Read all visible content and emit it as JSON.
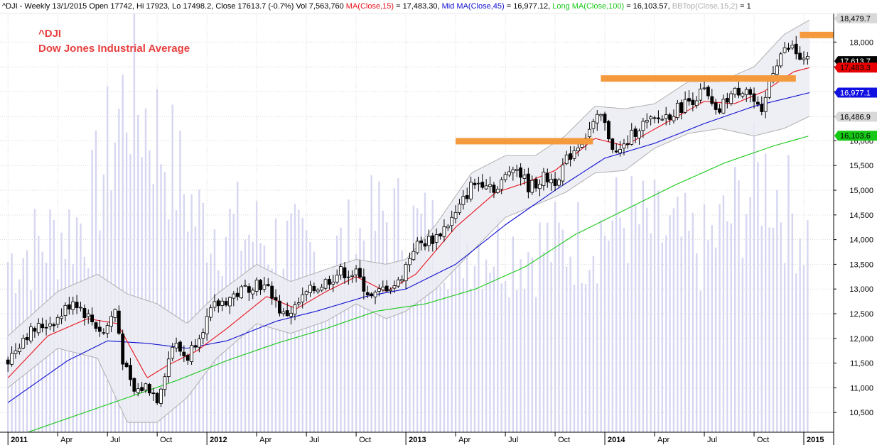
{
  "header": {
    "segments": [
      {
        "text": "^DJI - Weekly 13/1/2015 Open 17742, Hi 17923, Lo 17498.2, Close 17613.7 (-0.7%) Vol 7,563,760 ",
        "color": "#000000"
      },
      {
        "text": "MA(Close,15)",
        "color": "#e8141c"
      },
      {
        "text": " = 17,483.30, ",
        "color": "#000000"
      },
      {
        "text": "Mid MA(Close,45)",
        "color": "#1010d0"
      },
      {
        "text": " = 16,977.12, ",
        "color": "#000000"
      },
      {
        "text": "Long MA(Close,100)",
        "color": "#18c818"
      },
      {
        "text": " = 16,103.57, ",
        "color": "#000000"
      },
      {
        "text": "BBTop(Close,15,2)",
        "color": "#b0b0b0"
      },
      {
        "text": " = 1",
        "color": "#000000"
      }
    ]
  },
  "chart_data": {
    "type": "candlestick",
    "symbol": "^DJI",
    "title": "^DJI",
    "subtitle": "Dow Jones Industrial Average",
    "ylim": [
      10100,
      18550
    ],
    "yticks": [
      10500,
      11000,
      11500,
      12000,
      12500,
      13000,
      13500,
      14000,
      14500,
      15000,
      15500,
      16000,
      16486.9,
      17000,
      17500,
      18000
    ],
    "ytick_labels": [
      "10,500",
      "11,000",
      "11,500",
      "12,000",
      "12,500",
      "13,000",
      "13,500",
      "14,000",
      "14,500",
      "15,000",
      "15,500",
      "16,000",
      "16,486.9",
      "",
      "",
      "18,000"
    ],
    "xlim": [
      2010.96,
      2015.15
    ],
    "x_labels": [
      {
        "label": "2011",
        "t": 2011.0,
        "bold": true
      },
      {
        "label": "Apr",
        "t": 2011.25,
        "bold": false
      },
      {
        "label": "Jul",
        "t": 2011.5,
        "bold": false
      },
      {
        "label": "Oct",
        "t": 2011.75,
        "bold": false
      },
      {
        "label": "2012",
        "t": 2012.0,
        "bold": true
      },
      {
        "label": "Apr",
        "t": 2012.25,
        "bold": false
      },
      {
        "label": "Jul",
        "t": 2012.5,
        "bold": false
      },
      {
        "label": "Oct",
        "t": 2012.75,
        "bold": false
      },
      {
        "label": "2013",
        "t": 2013.0,
        "bold": true
      },
      {
        "label": "Apr",
        "t": 2013.25,
        "bold": false
      },
      {
        "label": "Jul",
        "t": 2013.5,
        "bold": false
      },
      {
        "label": "Oct",
        "t": 2013.75,
        "bold": false
      },
      {
        "label": "2014",
        "t": 2014.0,
        "bold": true
      },
      {
        "label": "Apr",
        "t": 2014.25,
        "bold": false
      },
      {
        "label": "Jul",
        "t": 2014.5,
        "bold": false
      },
      {
        "label": "Oct",
        "t": 2014.75,
        "bold": false
      },
      {
        "label": "2015",
        "t": 2015.0,
        "bold": true
      }
    ],
    "price_anchors": [
      [
        2011.0,
        11550
      ],
      [
        2011.08,
        12050
      ],
      [
        2011.17,
        12250
      ],
      [
        2011.25,
        12400
      ],
      [
        2011.33,
        12800
      ],
      [
        2011.4,
        12450
      ],
      [
        2011.48,
        12100
      ],
      [
        2011.54,
        12600
      ],
      [
        2011.58,
        11500
      ],
      [
        2011.63,
        10900
      ],
      [
        2011.7,
        11050
      ],
      [
        2011.75,
        10800
      ],
      [
        2011.83,
        11900
      ],
      [
        2011.9,
        11600
      ],
      [
        2011.96,
        12100
      ],
      [
        2012.04,
        12650
      ],
      [
        2012.17,
        12950
      ],
      [
        2012.25,
        13150
      ],
      [
        2012.33,
        12900
      ],
      [
        2012.38,
        12450
      ],
      [
        2012.44,
        12600
      ],
      [
        2012.5,
        12900
      ],
      [
        2012.58,
        13100
      ],
      [
        2012.67,
        13350
      ],
      [
        2012.75,
        13300
      ],
      [
        2012.83,
        12800
      ],
      [
        2012.9,
        13050
      ],
      [
        2012.96,
        13100
      ],
      [
        2013.04,
        13850
      ],
      [
        2013.15,
        14050
      ],
      [
        2013.25,
        14500
      ],
      [
        2013.33,
        15100
      ],
      [
        2013.4,
        15200
      ],
      [
        2013.46,
        15000
      ],
      [
        2013.54,
        15550
      ],
      [
        2013.62,
        15050
      ],
      [
        2013.69,
        15250
      ],
      [
        2013.75,
        15200
      ],
      [
        2013.83,
        15750
      ],
      [
        2013.92,
        16200
      ],
      [
        2013.98,
        16500
      ],
      [
        2014.06,
        15700
      ],
      [
        2014.1,
        15900
      ],
      [
        2014.17,
        16300
      ],
      [
        2014.25,
        16400
      ],
      [
        2014.33,
        16550
      ],
      [
        2014.42,
        16800
      ],
      [
        2014.5,
        17000
      ],
      [
        2014.56,
        16500
      ],
      [
        2014.62,
        16900
      ],
      [
        2014.71,
        17100
      ],
      [
        2014.79,
        16450
      ],
      [
        2014.83,
        17300
      ],
      [
        2014.88,
        17750
      ],
      [
        2014.94,
        17900
      ],
      [
        2014.99,
        17600
      ],
      [
        2015.03,
        17614
      ]
    ],
    "bollinger_anchors": [
      [
        2011.0,
        12050,
        11000
      ],
      [
        2011.25,
        12950,
        11800
      ],
      [
        2011.45,
        13300,
        11600
      ],
      [
        2011.6,
        12900,
        10300
      ],
      [
        2011.75,
        12700,
        10300
      ],
      [
        2011.9,
        12300,
        10800
      ],
      [
        2012.05,
        12900,
        11600
      ],
      [
        2012.25,
        13500,
        12300
      ],
      [
        2012.42,
        13150,
        12100
      ],
      [
        2012.6,
        13400,
        12350
      ],
      [
        2012.75,
        13600,
        12700
      ],
      [
        2012.9,
        13500,
        12400
      ],
      [
        2013.0,
        13600,
        12550
      ],
      [
        2013.15,
        14300,
        13000
      ],
      [
        2013.33,
        15350,
        13750
      ],
      [
        2013.5,
        15700,
        14450
      ],
      [
        2013.65,
        15700,
        14700
      ],
      [
        2013.8,
        16100,
        14950
      ],
      [
        2013.95,
        16700,
        15350
      ],
      [
        2014.1,
        16650,
        15400
      ],
      [
        2014.25,
        16750,
        15850
      ],
      [
        2014.42,
        17200,
        16150
      ],
      [
        2014.58,
        17200,
        16250
      ],
      [
        2014.75,
        17500,
        16100
      ],
      [
        2014.9,
        18150,
        16250
      ],
      [
        2015.03,
        18450,
        16500
      ]
    ],
    "ma_fast_anchors": [
      [
        2011.0,
        11200
      ],
      [
        2011.2,
        12050
      ],
      [
        2011.4,
        12400
      ],
      [
        2011.55,
        12300
      ],
      [
        2011.7,
        11200
      ],
      [
        2011.8,
        11450
      ],
      [
        2011.95,
        11750
      ],
      [
        2012.1,
        12200
      ],
      [
        2012.3,
        12850
      ],
      [
        2012.45,
        12600
      ],
      [
        2012.6,
        12950
      ],
      [
        2012.75,
        13250
      ],
      [
        2012.9,
        12950
      ],
      [
        2013.05,
        13300
      ],
      [
        2013.25,
        14250
      ],
      [
        2013.45,
        14950
      ],
      [
        2013.6,
        15150
      ],
      [
        2013.75,
        15400
      ],
      [
        2013.95,
        16050
      ],
      [
        2014.1,
        15900
      ],
      [
        2014.3,
        16350
      ],
      [
        2014.5,
        16800
      ],
      [
        2014.65,
        16750
      ],
      [
        2014.8,
        17000
      ],
      [
        2014.95,
        17400
      ],
      [
        2015.03,
        17483
      ]
    ],
    "ma_mid_anchors": [
      [
        2011.0,
        10700
      ],
      [
        2011.3,
        11550
      ],
      [
        2011.5,
        11950
      ],
      [
        2011.7,
        11900
      ],
      [
        2011.9,
        11800
      ],
      [
        2012.1,
        11950
      ],
      [
        2012.35,
        12350
      ],
      [
        2012.55,
        12550
      ],
      [
        2012.8,
        12850
      ],
      [
        2013.0,
        13000
      ],
      [
        2013.25,
        13500
      ],
      [
        2013.5,
        14300
      ],
      [
        2013.75,
        15000
      ],
      [
        2014.0,
        15650
      ],
      [
        2014.25,
        15950
      ],
      [
        2014.5,
        16350
      ],
      [
        2014.75,
        16700
      ],
      [
        2015.03,
        16977
      ]
    ],
    "ma_long_anchors": [
      [
        2011.1,
        10100
      ],
      [
        2011.35,
        10450
      ],
      [
        2011.6,
        10800
      ],
      [
        2011.85,
        11150
      ],
      [
        2012.1,
        11550
      ],
      [
        2012.35,
        11900
      ],
      [
        2012.6,
        12200
      ],
      [
        2012.85,
        12550
      ],
      [
        2013.1,
        12700
      ],
      [
        2013.35,
        13000
      ],
      [
        2013.6,
        13450
      ],
      [
        2013.85,
        14100
      ],
      [
        2014.1,
        14600
      ],
      [
        2014.35,
        15100
      ],
      [
        2014.6,
        15550
      ],
      [
        2014.85,
        15900
      ],
      [
        2015.03,
        16104
      ]
    ],
    "volume_ceiling": 20000000,
    "volume_anchors": [
      [
        2011.0,
        8000000
      ],
      [
        2011.4,
        10000000
      ],
      [
        2011.6,
        16000000
      ],
      [
        2011.75,
        14000000
      ],
      [
        2011.95,
        10000000
      ],
      [
        2012.3,
        9000000
      ],
      [
        2012.6,
        8000000
      ],
      [
        2012.9,
        10000000
      ],
      [
        2013.2,
        9000000
      ],
      [
        2013.6,
        8500000
      ],
      [
        2013.9,
        9000000
      ],
      [
        2014.1,
        10000000
      ],
      [
        2014.5,
        8500000
      ],
      [
        2014.8,
        12000000
      ],
      [
        2015.03,
        9000000
      ]
    ],
    "resistance_zones": [
      {
        "t0": 2013.25,
        "t1": 2013.94,
        "y": 16000
      },
      {
        "t0": 2013.98,
        "t1": 2014.96,
        "y": 17270
      },
      {
        "t0": 2014.98,
        "t1": 2015.15,
        "y": 18150
      }
    ],
    "price_tags": [
      {
        "text": "18,479.7",
        "y": 18479.7,
        "bg": "#d8d8d8",
        "fg": "#000000"
      },
      {
        "text": "17,613.7",
        "y": 17613.7,
        "bg": "#000000",
        "fg": "#ffffff"
      },
      {
        "text": "17,483.3",
        "y": 17483.3,
        "bg": "#e80000",
        "fg": "#000000"
      },
      {
        "text": "16,977.1",
        "y": 16977.1,
        "bg": "#1010e0",
        "fg": "#ffffff"
      },
      {
        "text": "16,486.9",
        "y": 16486.9,
        "bg": "#d8d8d8",
        "fg": "#000000"
      },
      {
        "text": "16,103.6",
        "y": 16103.6,
        "bg": "#16c816",
        "fg": "#000000"
      }
    ],
    "colors": {
      "ma_fast": "#e8141c",
      "ma_mid": "#1010d0",
      "ma_long": "#18c818",
      "bollinger": "#b0b0b0",
      "bollinger_fill": "#ebebf3",
      "volume": "#d6d6f2",
      "zone": "#f59a3c",
      "title": "#e84040",
      "gridline": "#d9d9d9"
    }
  }
}
